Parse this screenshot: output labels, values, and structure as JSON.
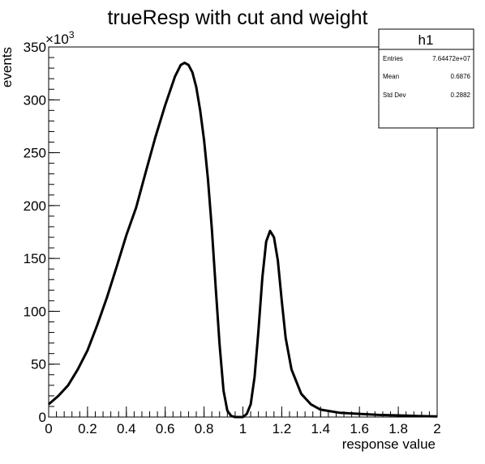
{
  "chart_data": {
    "type": "line",
    "title": "trueResp with cut and weight",
    "xlabel": "response value",
    "ylabel": "events",
    "y_multiplier_label": "×10",
    "y_multiplier_exponent": "3",
    "xlim": [
      0,
      2
    ],
    "ylim": [
      0,
      350
    ],
    "x_ticks": [
      "0",
      "0.2",
      "0.4",
      "0.6",
      "0.8",
      "1",
      "1.2",
      "1.4",
      "1.6",
      "1.8",
      "2"
    ],
    "y_ticks": [
      "0",
      "50",
      "100",
      "150",
      "200",
      "250",
      "300",
      "350"
    ],
    "grid": false,
    "legend": "none",
    "line_color": "#000000",
    "series": [
      {
        "x": [
          0.0,
          0.05,
          0.1,
          0.15,
          0.2,
          0.25,
          0.3,
          0.35,
          0.4,
          0.45,
          0.5,
          0.55,
          0.6,
          0.65,
          0.68,
          0.7,
          0.72,
          0.74,
          0.76,
          0.78,
          0.8,
          0.82,
          0.84,
          0.86,
          0.88,
          0.9,
          0.92,
          0.94,
          0.96,
          0.98,
          1.0,
          1.02,
          1.04,
          1.06,
          1.08,
          1.1,
          1.12,
          1.14,
          1.16,
          1.18,
          1.2,
          1.22,
          1.25,
          1.3,
          1.35,
          1.4,
          1.5,
          1.6,
          1.7,
          1.8,
          1.9,
          2.0
        ],
        "values": [
          12,
          20,
          30,
          45,
          63,
          87,
          113,
          142,
          172,
          198,
          232,
          265,
          295,
          322,
          333,
          335,
          333,
          326,
          312,
          290,
          262,
          225,
          178,
          122,
          68,
          25,
          6,
          1,
          0,
          0,
          0,
          3,
          12,
          38,
          82,
          132,
          166,
          176,
          170,
          148,
          110,
          75,
          45,
          22,
          12,
          7,
          4,
          3,
          2,
          1.5,
          1,
          0.5
        ]
      }
    ]
  },
  "stats_box": {
    "name": "h1",
    "rows": [
      {
        "label": "Entries",
        "value": "7.64472e+07"
      },
      {
        "label": "Mean",
        "value": "0.6876"
      },
      {
        "label": "Std Dev",
        "value": "0.2882"
      }
    ]
  }
}
